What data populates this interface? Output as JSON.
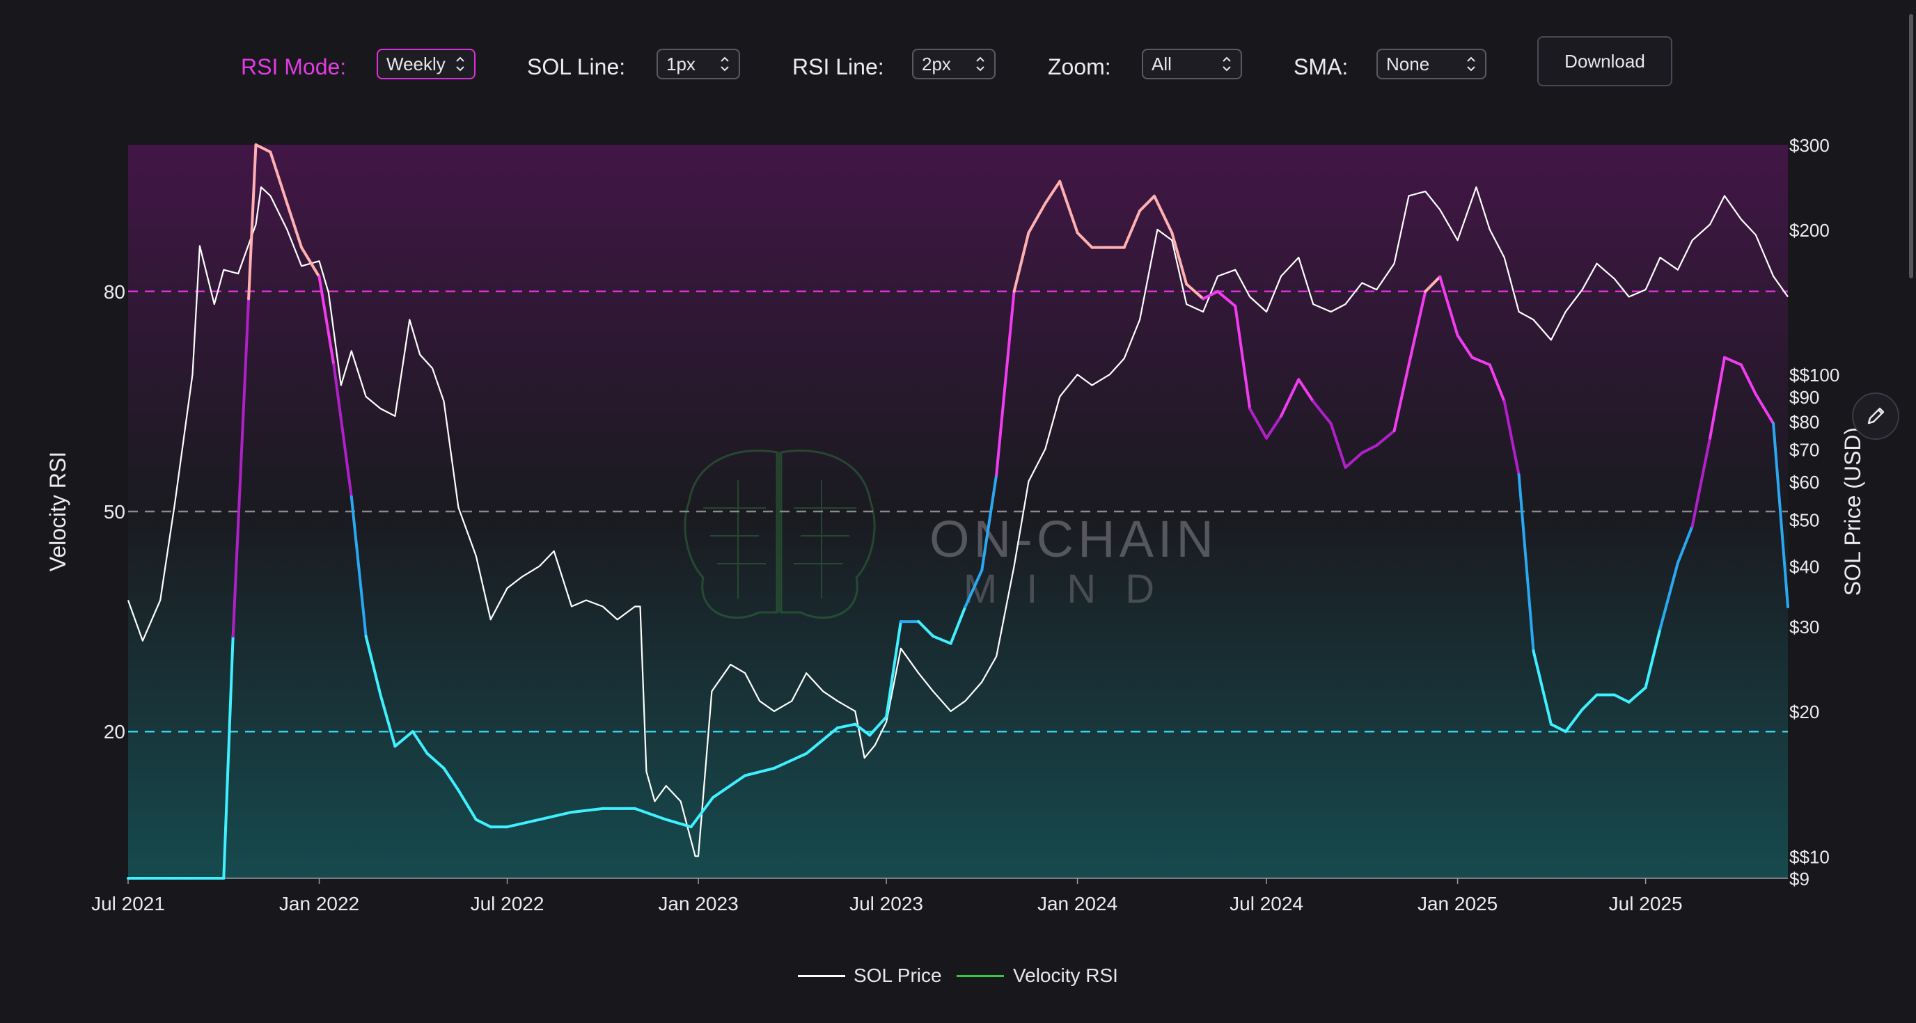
{
  "controls": {
    "rsi_mode": {
      "label": "RSI Mode:",
      "value": "Weekly"
    },
    "sol_line": {
      "label": "SOL Line:",
      "value": "1px"
    },
    "rsi_line": {
      "label": "RSI Line:",
      "value": "2px"
    },
    "zoom": {
      "label": "Zoom:",
      "value": "All"
    },
    "sma": {
      "label": "SMA:",
      "value": "None"
    },
    "download_label": "Download"
  },
  "watermark": {
    "line1": "ON-CHAIN",
    "line2": "MIND"
  },
  "colors": {
    "background": "#17171c",
    "accent": "#e23ce3",
    "overbought": "#d733d6",
    "oversold": "#35d3e6",
    "midline": "#8a8a8f",
    "price_line": "#ffffff",
    "rsi_low": "#3ff0ff",
    "rsi_mid_low": "#2aa8f0",
    "rsi_mid_high": "#b020c8",
    "rsi_high": "#f13cf0",
    "rsi_extreme": "#ffb1b1",
    "legend_rsi": "#2ecc40"
  },
  "chart_data": {
    "type": "line",
    "left_axis": {
      "label": "Velocity RSI",
      "ticks": [
        20,
        50,
        80
      ],
      "range": [
        0,
        100
      ]
    },
    "right_axis": {
      "label": "SOL Price (USD)",
      "scale": "log",
      "ticks": [
        "$9",
        "$$10",
        "$20",
        "$30",
        "$40",
        "$50",
        "$60",
        "$70",
        "$80",
        "$90",
        "$$100",
        "$200",
        "$300"
      ],
      "tick_values": [
        9,
        10,
        20,
        30,
        40,
        50,
        60,
        70,
        80,
        90,
        100,
        200,
        300
      ],
      "range": [
        9,
        300
      ]
    },
    "x_axis": {
      "ticks": [
        "Jul 2021",
        "Jan 2022",
        "Jul 2022",
        "Jan 2023",
        "Jul 2023",
        "Jan 2024",
        "Jul 2024",
        "Jan 2025",
        "Jul 2025"
      ],
      "tick_dates": [
        "2021-07-01",
        "2022-01-01",
        "2022-07-01",
        "2023-01-01",
        "2023-07-01",
        "2024-01-01",
        "2024-07-01",
        "2025-01-01",
        "2025-07-01"
      ],
      "range": [
        "2021-07-01",
        "2025-11-15"
      ]
    },
    "reference_lines": [
      {
        "value": 80,
        "style": "dashed",
        "color": "#d733d6"
      },
      {
        "value": 50,
        "style": "dashed",
        "color": "#8a8a8f"
      },
      {
        "value": 20,
        "style": "dashed",
        "color": "#35d3e6"
      }
    ],
    "legend": [
      "SOL Price",
      "Velocity RSI"
    ],
    "series": [
      {
        "name": "SOL Price",
        "points": [
          [
            "2021-07-01",
            34
          ],
          [
            "2021-07-15",
            28
          ],
          [
            "2021-08-01",
            34
          ],
          [
            "2021-08-15",
            54
          ],
          [
            "2021-09-01",
            100
          ],
          [
            "2021-09-08",
            185
          ],
          [
            "2021-09-22",
            140
          ],
          [
            "2021-10-01",
            165
          ],
          [
            "2021-10-15",
            162
          ],
          [
            "2021-11-01",
            205
          ],
          [
            "2021-11-06",
            245
          ],
          [
            "2021-11-15",
            235
          ],
          [
            "2021-12-01",
            200
          ],
          [
            "2021-12-15",
            168
          ],
          [
            "2022-01-01",
            172
          ],
          [
            "2022-01-10",
            148
          ],
          [
            "2022-01-22",
            95
          ],
          [
            "2022-02-01",
            112
          ],
          [
            "2022-02-15",
            90
          ],
          [
            "2022-03-01",
            85
          ],
          [
            "2022-03-15",
            82
          ],
          [
            "2022-03-29",
            130
          ],
          [
            "2022-04-08",
            110
          ],
          [
            "2022-04-20",
            103
          ],
          [
            "2022-05-01",
            88
          ],
          [
            "2022-05-15",
            53
          ],
          [
            "2022-06-01",
            42
          ],
          [
            "2022-06-15",
            31
          ],
          [
            "2022-07-01",
            36
          ],
          [
            "2022-07-15",
            38
          ],
          [
            "2022-08-01",
            40
          ],
          [
            "2022-08-15",
            43
          ],
          [
            "2022-09-01",
            33
          ],
          [
            "2022-09-15",
            34
          ],
          [
            "2022-10-01",
            33
          ],
          [
            "2022-10-15",
            31
          ],
          [
            "2022-11-01",
            33
          ],
          [
            "2022-11-06",
            33
          ],
          [
            "2022-11-12",
            15
          ],
          [
            "2022-11-20",
            13
          ],
          [
            "2022-12-01",
            14
          ],
          [
            "2022-12-15",
            13
          ],
          [
            "2022-12-29",
            10
          ],
          [
            "2023-01-01",
            10
          ],
          [
            "2023-01-14",
            22
          ],
          [
            "2023-02-01",
            25
          ],
          [
            "2023-02-15",
            24
          ],
          [
            "2023-03-01",
            21
          ],
          [
            "2023-03-15",
            20
          ],
          [
            "2023-04-01",
            21
          ],
          [
            "2023-04-15",
            24
          ],
          [
            "2023-05-01",
            22
          ],
          [
            "2023-05-15",
            21
          ],
          [
            "2023-06-01",
            20
          ],
          [
            "2023-06-10",
            16
          ],
          [
            "2023-06-20",
            17
          ],
          [
            "2023-07-01",
            19
          ],
          [
            "2023-07-15",
            27
          ],
          [
            "2023-08-01",
            24
          ],
          [
            "2023-08-15",
            22
          ],
          [
            "2023-09-01",
            20
          ],
          [
            "2023-09-15",
            21
          ],
          [
            "2023-10-01",
            23
          ],
          [
            "2023-10-15",
            26
          ],
          [
            "2023-11-01",
            40
          ],
          [
            "2023-11-15",
            60
          ],
          [
            "2023-12-01",
            70
          ],
          [
            "2023-12-15",
            90
          ],
          [
            "2024-01-01",
            100
          ],
          [
            "2024-01-15",
            95
          ],
          [
            "2024-02-01",
            100
          ],
          [
            "2024-02-15",
            108
          ],
          [
            "2024-03-01",
            130
          ],
          [
            "2024-03-18",
            200
          ],
          [
            "2024-04-01",
            190
          ],
          [
            "2024-04-15",
            140
          ],
          [
            "2024-05-01",
            135
          ],
          [
            "2024-05-15",
            160
          ],
          [
            "2024-06-01",
            165
          ],
          [
            "2024-06-15",
            145
          ],
          [
            "2024-07-01",
            135
          ],
          [
            "2024-07-15",
            160
          ],
          [
            "2024-08-01",
            175
          ],
          [
            "2024-08-15",
            140
          ],
          [
            "2024-09-01",
            135
          ],
          [
            "2024-09-15",
            140
          ],
          [
            "2024-10-01",
            155
          ],
          [
            "2024-10-15",
            150
          ],
          [
            "2024-11-01",
            170
          ],
          [
            "2024-11-15",
            235
          ],
          [
            "2024-12-01",
            240
          ],
          [
            "2024-12-15",
            220
          ],
          [
            "2025-01-01",
            190
          ],
          [
            "2025-01-19",
            245
          ],
          [
            "2025-02-01",
            200
          ],
          [
            "2025-02-15",
            175
          ],
          [
            "2025-03-01",
            135
          ],
          [
            "2025-03-15",
            130
          ],
          [
            "2025-04-01",
            118
          ],
          [
            "2025-04-15",
            135
          ],
          [
            "2025-05-01",
            150
          ],
          [
            "2025-05-15",
            170
          ],
          [
            "2025-06-01",
            158
          ],
          [
            "2025-06-15",
            145
          ],
          [
            "2025-07-01",
            150
          ],
          [
            "2025-07-15",
            175
          ],
          [
            "2025-08-01",
            165
          ],
          [
            "2025-08-15",
            190
          ],
          [
            "2025-09-01",
            205
          ],
          [
            "2025-09-15",
            235
          ],
          [
            "2025-10-01",
            210
          ],
          [
            "2025-10-15",
            195
          ],
          [
            "2025-11-01",
            160
          ],
          [
            "2025-11-15",
            145
          ]
        ]
      },
      {
        "name": "Velocity RSI",
        "points": [
          [
            "2021-07-01",
            0
          ],
          [
            "2021-10-01",
            0
          ],
          [
            "2021-10-10",
            33
          ],
          [
            "2021-10-25",
            79
          ],
          [
            "2021-11-01",
            100
          ],
          [
            "2021-11-15",
            99
          ],
          [
            "2021-12-01",
            92
          ],
          [
            "2021-12-15",
            86
          ],
          [
            "2022-01-01",
            82
          ],
          [
            "2022-01-15",
            70
          ],
          [
            "2022-02-01",
            52
          ],
          [
            "2022-02-15",
            33
          ],
          [
            "2022-03-01",
            25
          ],
          [
            "2022-03-15",
            18
          ],
          [
            "2022-04-01",
            20
          ],
          [
            "2022-04-15",
            17
          ],
          [
            "2022-05-01",
            15
          ],
          [
            "2022-05-15",
            12
          ],
          [
            "2022-06-01",
            8
          ],
          [
            "2022-06-15",
            7
          ],
          [
            "2022-07-01",
            7
          ],
          [
            "2022-08-01",
            8
          ],
          [
            "2022-09-01",
            9
          ],
          [
            "2022-10-01",
            9.5
          ],
          [
            "2022-11-01",
            9.5
          ],
          [
            "2022-12-01",
            8
          ],
          [
            "2022-12-25",
            7
          ],
          [
            "2023-01-15",
            11
          ],
          [
            "2023-02-15",
            14
          ],
          [
            "2023-03-15",
            15
          ],
          [
            "2023-04-15",
            17
          ],
          [
            "2023-05-15",
            20.5
          ],
          [
            "2023-06-01",
            21
          ],
          [
            "2023-06-15",
            19.5
          ],
          [
            "2023-07-01",
            22
          ],
          [
            "2023-07-15",
            35
          ],
          [
            "2023-08-01",
            35
          ],
          [
            "2023-08-15",
            33
          ],
          [
            "2023-09-01",
            32
          ],
          [
            "2023-09-15",
            37
          ],
          [
            "2023-10-01",
            42
          ],
          [
            "2023-10-15",
            55
          ],
          [
            "2023-11-01",
            80
          ],
          [
            "2023-11-15",
            88
          ],
          [
            "2023-12-01",
            92
          ],
          [
            "2023-12-15",
            95
          ],
          [
            "2024-01-01",
            88
          ],
          [
            "2024-01-15",
            86
          ],
          [
            "2024-02-01",
            86
          ],
          [
            "2024-02-15",
            86
          ],
          [
            "2024-03-01",
            91
          ],
          [
            "2024-03-15",
            93
          ],
          [
            "2024-04-01",
            88
          ],
          [
            "2024-04-15",
            81
          ],
          [
            "2024-05-01",
            79
          ],
          [
            "2024-05-15",
            80
          ],
          [
            "2024-06-01",
            78
          ],
          [
            "2024-06-15",
            64
          ],
          [
            "2024-07-01",
            60
          ],
          [
            "2024-07-15",
            63
          ],
          [
            "2024-08-01",
            68
          ],
          [
            "2024-08-15",
            65
          ],
          [
            "2024-09-01",
            62
          ],
          [
            "2024-09-15",
            56
          ],
          [
            "2024-10-01",
            58
          ],
          [
            "2024-10-15",
            59
          ],
          [
            "2024-11-01",
            61
          ],
          [
            "2024-11-15",
            70
          ],
          [
            "2024-12-01",
            80
          ],
          [
            "2024-12-15",
            82
          ],
          [
            "2025-01-01",
            74
          ],
          [
            "2025-01-15",
            71
          ],
          [
            "2025-02-01",
            70
          ],
          [
            "2025-02-15",
            65
          ],
          [
            "2025-03-01",
            55
          ],
          [
            "2025-03-15",
            31
          ],
          [
            "2025-04-01",
            21
          ],
          [
            "2025-04-15",
            20
          ],
          [
            "2025-05-01",
            23
          ],
          [
            "2025-05-15",
            25
          ],
          [
            "2025-06-01",
            25
          ],
          [
            "2025-06-15",
            24
          ],
          [
            "2025-07-01",
            26
          ],
          [
            "2025-07-15",
            34
          ],
          [
            "2025-08-01",
            43
          ],
          [
            "2025-08-15",
            48
          ],
          [
            "2025-09-01",
            60
          ],
          [
            "2025-09-15",
            71
          ],
          [
            "2025-10-01",
            70
          ],
          [
            "2025-10-15",
            66
          ],
          [
            "2025-11-01",
            62
          ],
          [
            "2025-11-15",
            37
          ]
        ]
      }
    ]
  }
}
